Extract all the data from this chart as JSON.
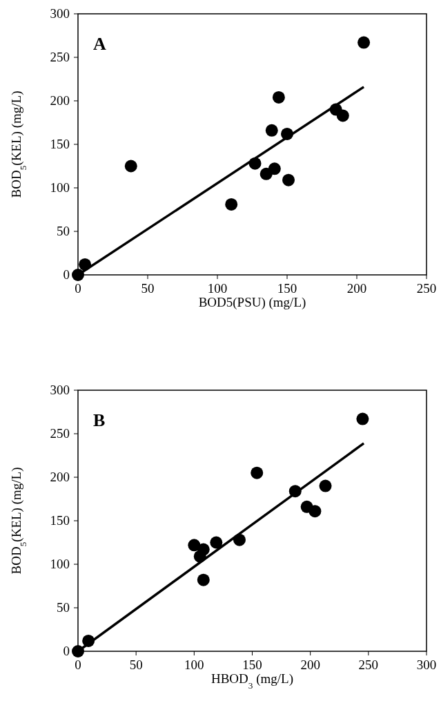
{
  "chart_data": [
    {
      "type": "scatter",
      "xlabel": "BOD5(PSU) (mg/L)",
      "ylabel": "BOD$_{5}$(KEL) (mg/L)",
      "annotations": [
        "A"
      ],
      "xlim": [
        0,
        250
      ],
      "ylim": [
        0,
        300
      ],
      "xticks": [
        0,
        50,
        100,
        150,
        200,
        250
      ],
      "yticks": [
        0,
        50,
        100,
        150,
        200,
        250,
        300
      ],
      "series": [
        {
          "type": "scatter",
          "marker": "circle",
          "color": "#000000",
          "x": [
            0,
            5,
            38,
            110,
            127,
            135,
            141,
            139,
            144,
            150,
            151,
            185,
            190,
            205
          ],
          "values": [
            0,
            12,
            125,
            81,
            128,
            116,
            122,
            166,
            204,
            162,
            109,
            190,
            183,
            267
          ]
        },
        {
          "type": "line",
          "color": "#000000",
          "x": [
            0,
            205
          ],
          "values": [
            0,
            216
          ]
        }
      ]
    },
    {
      "type": "scatter",
      "xlabel": "HBOD$_{3}$ (mg/L)",
      "ylabel": "BOD$_{5}$(KEL) (mg/L)",
      "annotations": [
        "B"
      ],
      "xlim": [
        0,
        300
      ],
      "ylim": [
        0,
        300
      ],
      "xticks": [
        0,
        50,
        100,
        150,
        200,
        250,
        300
      ],
      "yticks": [
        0,
        50,
        100,
        150,
        200,
        250,
        300
      ],
      "series": [
        {
          "type": "scatter",
          "marker": "circle",
          "color": "#000000",
          "x": [
            0,
            9,
            100,
            108,
            105,
            119,
            108,
            139,
            154,
            187,
            197,
            204,
            213,
            245
          ],
          "values": [
            0,
            12,
            122,
            117,
            109,
            125,
            82,
            128,
            205,
            184,
            166,
            161,
            190,
            267
          ]
        },
        {
          "type": "line",
          "color": "#000000",
          "x": [
            0,
            246
          ],
          "values": [
            0,
            239
          ]
        }
      ]
    }
  ]
}
